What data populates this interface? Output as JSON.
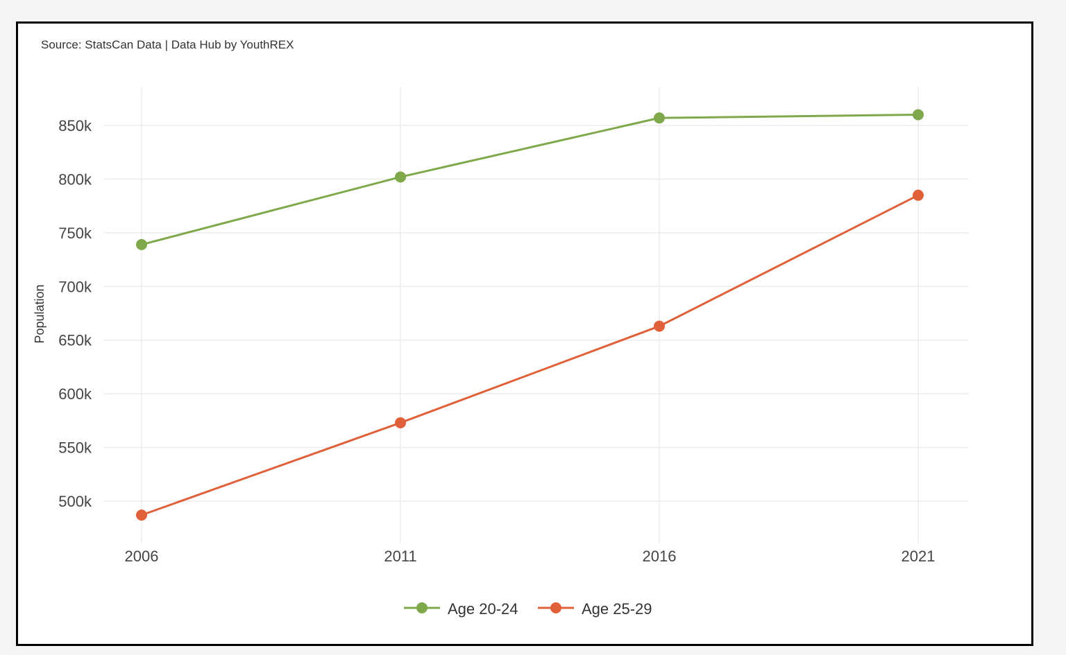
{
  "source_note": "Source: StatsCan Data | Data Hub by YouthREX",
  "chart_data": {
    "type": "line",
    "x": [
      "2006",
      "2011",
      "2016",
      "2021"
    ],
    "ylabel": "Population",
    "xlabel": "",
    "ylim": [
      463000,
      888000
    ],
    "yticks": [
      500000,
      550000,
      600000,
      650000,
      700000,
      750000,
      800000,
      850000
    ],
    "ytick_labels": [
      "500k",
      "550k",
      "600k",
      "650k",
      "700k",
      "750k",
      "800k",
      "850k"
    ],
    "grid": true,
    "legend_position": "bottom-center",
    "series": [
      {
        "name": "Age 20-24",
        "color": "#7fa84a",
        "values": [
          739000,
          802000,
          857000,
          860000
        ]
      },
      {
        "name": "Age 25-29",
        "color": "#e0603a",
        "values": [
          487000,
          573000,
          663000,
          785000
        ]
      }
    ]
  }
}
